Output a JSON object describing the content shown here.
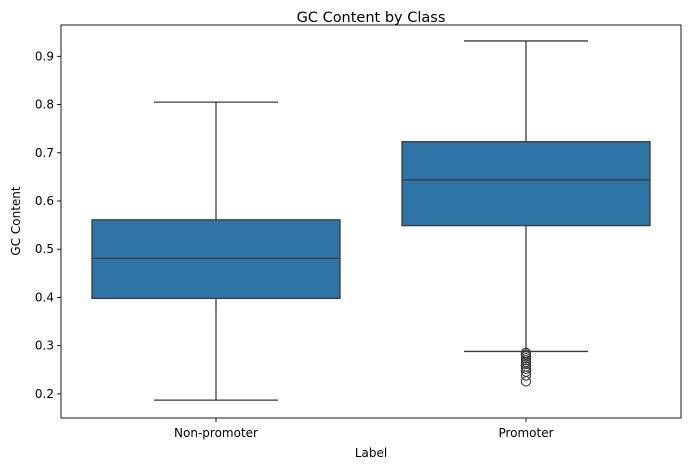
{
  "chart_data": {
    "type": "box",
    "title": "GC Content by Class",
    "xlabel": "Label",
    "ylabel": "GC Content",
    "categories": [
      "Non-promoter",
      "Promoter"
    ],
    "ylim": [
      0.15,
      0.965
    ],
    "yticks": [
      0.2,
      0.3,
      0.4,
      0.5,
      0.6,
      0.7,
      0.8,
      0.9
    ],
    "grid": false,
    "box_color": "#2e74a6",
    "line_color": "#3b3b3b",
    "boxes": [
      {
        "category": "Non-promoter",
        "whisker_low": 0.187,
        "q1": 0.398,
        "median": 0.481,
        "q3": 0.561,
        "whisker_high": 0.805,
        "outliers": []
      },
      {
        "category": "Promoter",
        "whisker_low": 0.288,
        "q1": 0.549,
        "median": 0.644,
        "q3": 0.723,
        "whisker_high": 0.932,
        "outliers": [
          0.226,
          0.238,
          0.246,
          0.252,
          0.257,
          0.262,
          0.266,
          0.27,
          0.274,
          0.278,
          0.282,
          0.285
        ]
      }
    ]
  }
}
